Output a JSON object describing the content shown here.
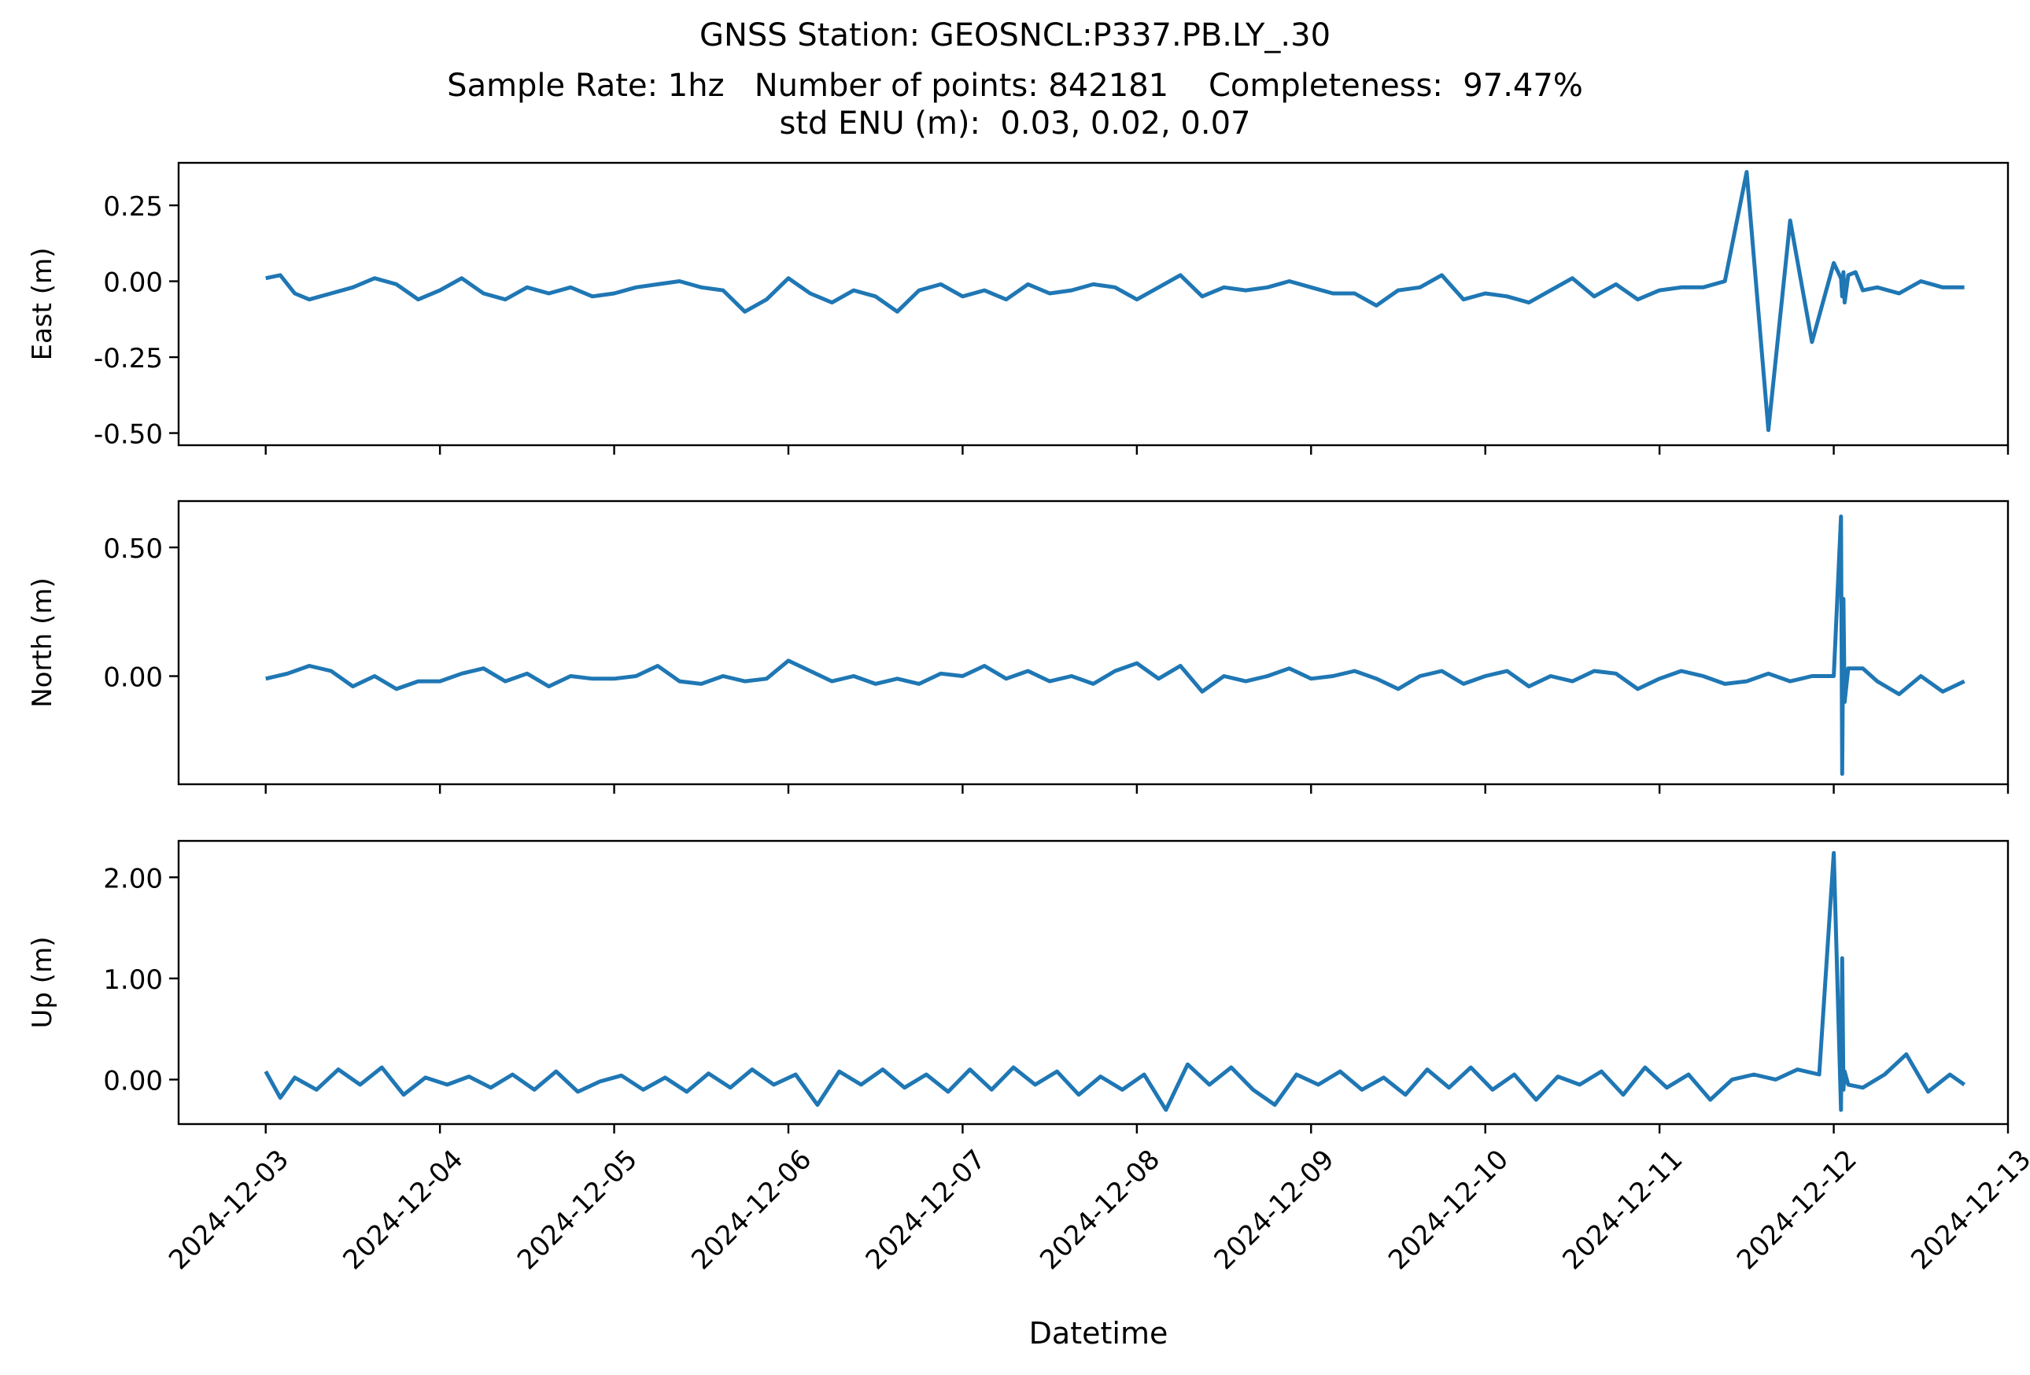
{
  "figure": {
    "title_lines": [
      "GNSS Station: GEOSNCL:P337.PB.LY_.30",
      "Sample Rate: 1hz   Number of points: 842181    Completeness:  97.47%",
      "std ENU (m):  0.03, 0.02, 0.07"
    ],
    "xlabel": "Datetime"
  },
  "chart_data": [
    {
      "type": "line",
      "ylabel": "East (m)",
      "color": "#1f77b4",
      "xlim": [
        "2024-12-02T12:00",
        "2024-12-13T00:00"
      ],
      "ylim": [
        -0.54,
        0.39
      ],
      "yticks": [
        0.25,
        0.0,
        -0.25,
        -0.5
      ],
      "ytick_labels": [
        "0.25",
        "0.00",
        "-0.25",
        "-0.50"
      ],
      "xtick_labels_visible": false,
      "series": [
        {
          "x": [
            "2024-12-03T00:00",
            "2024-12-03T02:00",
            "2024-12-03T04:00",
            "2024-12-03T06:00",
            "2024-12-03T09:00",
            "2024-12-03T12:00",
            "2024-12-03T15:00",
            "2024-12-03T18:00",
            "2024-12-03T21:00",
            "2024-12-04T00:00",
            "2024-12-04T03:00",
            "2024-12-04T06:00",
            "2024-12-04T09:00",
            "2024-12-04T12:00",
            "2024-12-04T15:00",
            "2024-12-04T18:00",
            "2024-12-04T21:00",
            "2024-12-05T00:00",
            "2024-12-05T03:00",
            "2024-12-05T06:00",
            "2024-12-05T09:00",
            "2024-12-05T12:00",
            "2024-12-05T15:00",
            "2024-12-05T18:00",
            "2024-12-05T21:00",
            "2024-12-06T00:00",
            "2024-12-06T03:00",
            "2024-12-06T06:00",
            "2024-12-06T09:00",
            "2024-12-06T12:00",
            "2024-12-06T15:00",
            "2024-12-06T18:00",
            "2024-12-06T21:00",
            "2024-12-07T00:00",
            "2024-12-07T03:00",
            "2024-12-07T06:00",
            "2024-12-07T09:00",
            "2024-12-07T12:00",
            "2024-12-07T15:00",
            "2024-12-07T18:00",
            "2024-12-07T21:00",
            "2024-12-08T00:00",
            "2024-12-08T03:00",
            "2024-12-08T06:00",
            "2024-12-08T09:00",
            "2024-12-08T12:00",
            "2024-12-08T15:00",
            "2024-12-08T18:00",
            "2024-12-08T21:00",
            "2024-12-09T00:00",
            "2024-12-09T03:00",
            "2024-12-09T06:00",
            "2024-12-09T09:00",
            "2024-12-09T12:00",
            "2024-12-09T15:00",
            "2024-12-09T18:00",
            "2024-12-09T21:00",
            "2024-12-10T00:00",
            "2024-12-10T03:00",
            "2024-12-10T06:00",
            "2024-12-10T09:00",
            "2024-12-10T12:00",
            "2024-12-10T15:00",
            "2024-12-10T18:00",
            "2024-12-10T21:00",
            "2024-12-11T00:00",
            "2024-12-11T03:00",
            "2024-12-11T06:00",
            "2024-12-11T09:00",
            "2024-12-11T12:00",
            "2024-12-11T15:00",
            "2024-12-11T18:00",
            "2024-12-11T21:00",
            "2024-12-12T00:00",
            "2024-12-12T01:00",
            "2024-12-12T01:10",
            "2024-12-12T01:20",
            "2024-12-12T01:30",
            "2024-12-12T02:00",
            "2024-12-12T03:00",
            "2024-12-12T04:00",
            "2024-12-12T06:00",
            "2024-12-12T09:00",
            "2024-12-12T12:00",
            "2024-12-12T15:00",
            "2024-12-12T18:00"
          ],
          "y": [
            0.01,
            0.02,
            -0.04,
            -0.06,
            -0.04,
            -0.02,
            0.01,
            -0.01,
            -0.06,
            -0.03,
            0.01,
            -0.04,
            -0.06,
            -0.02,
            -0.04,
            -0.02,
            -0.05,
            -0.04,
            -0.02,
            -0.01,
            0.0,
            -0.02,
            -0.03,
            -0.1,
            -0.06,
            0.01,
            -0.04,
            -0.07,
            -0.03,
            -0.05,
            -0.1,
            -0.03,
            -0.01,
            -0.05,
            -0.03,
            -0.06,
            -0.01,
            -0.04,
            -0.03,
            -0.01,
            -0.02,
            -0.06,
            -0.02,
            0.02,
            -0.05,
            -0.02,
            -0.03,
            -0.02,
            0.0,
            -0.02,
            -0.04,
            -0.04,
            -0.08,
            -0.03,
            -0.02,
            0.02,
            -0.06,
            -0.04,
            -0.05,
            -0.07,
            -0.03,
            0.01,
            -0.05,
            -0.01,
            -0.06,
            -0.03,
            -0.02,
            -0.02,
            0.0,
            0.36,
            -0.49,
            0.2,
            -0.2,
            0.06,
            0.01,
            -0.05,
            0.03,
            -0.07,
            0.02,
            0.03,
            -0.03,
            -0.02,
            -0.04,
            0.0,
            -0.02,
            -0.02
          ]
        }
      ]
    },
    {
      "type": "line",
      "ylabel": "North (m)",
      "color": "#1f77b4",
      "xlim": [
        "2024-12-02T12:00",
        "2024-12-13T00:00"
      ],
      "ylim": [
        -0.42,
        0.68
      ],
      "yticks": [
        0.5,
        0.0
      ],
      "ytick_labels": [
        "0.50",
        "0.00"
      ],
      "xtick_labels_visible": false,
      "series": [
        {
          "x": [
            "2024-12-03T00:00",
            "2024-12-03T03:00",
            "2024-12-03T06:00",
            "2024-12-03T09:00",
            "2024-12-03T12:00",
            "2024-12-03T15:00",
            "2024-12-03T18:00",
            "2024-12-03T21:00",
            "2024-12-04T00:00",
            "2024-12-04T03:00",
            "2024-12-04T06:00",
            "2024-12-04T09:00",
            "2024-12-04T12:00",
            "2024-12-04T15:00",
            "2024-12-04T18:00",
            "2024-12-04T21:00",
            "2024-12-05T00:00",
            "2024-12-05T03:00",
            "2024-12-05T06:00",
            "2024-12-05T09:00",
            "2024-12-05T12:00",
            "2024-12-05T15:00",
            "2024-12-05T18:00",
            "2024-12-05T21:00",
            "2024-12-06T00:00",
            "2024-12-06T03:00",
            "2024-12-06T06:00",
            "2024-12-06T09:00",
            "2024-12-06T12:00",
            "2024-12-06T15:00",
            "2024-12-06T18:00",
            "2024-12-06T21:00",
            "2024-12-07T00:00",
            "2024-12-07T03:00",
            "2024-12-07T06:00",
            "2024-12-07T09:00",
            "2024-12-07T12:00",
            "2024-12-07T15:00",
            "2024-12-07T18:00",
            "2024-12-07T21:00",
            "2024-12-08T00:00",
            "2024-12-08T03:00",
            "2024-12-08T06:00",
            "2024-12-08T09:00",
            "2024-12-08T12:00",
            "2024-12-08T15:00",
            "2024-12-08T18:00",
            "2024-12-08T21:00",
            "2024-12-09T00:00",
            "2024-12-09T03:00",
            "2024-12-09T06:00",
            "2024-12-09T09:00",
            "2024-12-09T12:00",
            "2024-12-09T15:00",
            "2024-12-09T18:00",
            "2024-12-09T21:00",
            "2024-12-10T00:00",
            "2024-12-10T03:00",
            "2024-12-10T06:00",
            "2024-12-10T09:00",
            "2024-12-10T12:00",
            "2024-12-10T15:00",
            "2024-12-10T18:00",
            "2024-12-10T21:00",
            "2024-12-11T00:00",
            "2024-12-11T03:00",
            "2024-12-11T06:00",
            "2024-12-11T09:00",
            "2024-12-11T12:00",
            "2024-12-11T15:00",
            "2024-12-11T18:00",
            "2024-12-11T21:00",
            "2024-12-12T00:00",
            "2024-12-12T01:00",
            "2024-12-12T01:10",
            "2024-12-12T01:20",
            "2024-12-12T01:30",
            "2024-12-12T02:00",
            "2024-12-12T04:00",
            "2024-12-12T06:00",
            "2024-12-12T09:00",
            "2024-12-12T12:00",
            "2024-12-12T15:00",
            "2024-12-12T18:00"
          ],
          "y": [
            -0.01,
            0.01,
            0.04,
            0.02,
            -0.04,
            0.0,
            -0.05,
            -0.02,
            -0.02,
            0.01,
            0.03,
            -0.02,
            0.01,
            -0.04,
            0.0,
            -0.01,
            -0.01,
            0.0,
            0.04,
            -0.02,
            -0.03,
            0.0,
            -0.02,
            -0.01,
            0.06,
            0.02,
            -0.02,
            0.0,
            -0.03,
            -0.01,
            -0.03,
            0.01,
            0.0,
            0.04,
            -0.01,
            0.02,
            -0.02,
            0.0,
            -0.03,
            0.02,
            0.05,
            -0.01,
            0.04,
            -0.06,
            0.0,
            -0.02,
            0.0,
            0.03,
            -0.01,
            0.0,
            0.02,
            -0.01,
            -0.05,
            0.0,
            0.02,
            -0.03,
            0.0,
            0.02,
            -0.04,
            0.0,
            -0.02,
            0.02,
            0.01,
            -0.05,
            -0.01,
            0.02,
            0.0,
            -0.03,
            -0.02,
            0.01,
            -0.02,
            0.0,
            0.0,
            0.62,
            -0.38,
            0.3,
            -0.1,
            0.03,
            0.03,
            -0.02,
            -0.07,
            0.0,
            -0.06,
            -0.02
          ]
        }
      ]
    },
    {
      "type": "line",
      "ylabel": "Up (m)",
      "color": "#1f77b4",
      "xlim": [
        "2024-12-02T12:00",
        "2024-12-13T00:00"
      ],
      "ylim": [
        -0.44,
        2.36
      ],
      "yticks": [
        2.0,
        1.0,
        0.0
      ],
      "ytick_labels": [
        "2.00",
        "1.00",
        "0.00"
      ],
      "xtick_labels_visible": true,
      "xtick_labels": [
        "2024-12-03",
        "2024-12-04",
        "2024-12-05",
        "2024-12-06",
        "2024-12-07",
        "2024-12-08",
        "2024-12-09",
        "2024-12-10",
        "2024-12-11",
        "2024-12-12",
        "2024-12-13"
      ],
      "series": [
        {
          "x": [
            "2024-12-03T00:00",
            "2024-12-03T02:00",
            "2024-12-03T04:00",
            "2024-12-03T07:00",
            "2024-12-03T10:00",
            "2024-12-03T13:00",
            "2024-12-03T16:00",
            "2024-12-03T19:00",
            "2024-12-03T22:00",
            "2024-12-04T01:00",
            "2024-12-04T04:00",
            "2024-12-04T07:00",
            "2024-12-04T10:00",
            "2024-12-04T13:00",
            "2024-12-04T16:00",
            "2024-12-04T19:00",
            "2024-12-04T22:00",
            "2024-12-05T01:00",
            "2024-12-05T04:00",
            "2024-12-05T07:00",
            "2024-12-05T10:00",
            "2024-12-05T13:00",
            "2024-12-05T16:00",
            "2024-12-05T19:00",
            "2024-12-05T22:00",
            "2024-12-06T01:00",
            "2024-12-06T04:00",
            "2024-12-06T07:00",
            "2024-12-06T10:00",
            "2024-12-06T13:00",
            "2024-12-06T16:00",
            "2024-12-06T19:00",
            "2024-12-06T22:00",
            "2024-12-07T01:00",
            "2024-12-07T04:00",
            "2024-12-07T07:00",
            "2024-12-07T10:00",
            "2024-12-07T13:00",
            "2024-12-07T16:00",
            "2024-12-07T19:00",
            "2024-12-07T22:00",
            "2024-12-08T01:00",
            "2024-12-08T04:00",
            "2024-12-08T07:00",
            "2024-12-08T10:00",
            "2024-12-08T13:00",
            "2024-12-08T16:00",
            "2024-12-08T19:00",
            "2024-12-08T22:00",
            "2024-12-09T01:00",
            "2024-12-09T04:00",
            "2024-12-09T07:00",
            "2024-12-09T10:00",
            "2024-12-09T13:00",
            "2024-12-09T16:00",
            "2024-12-09T19:00",
            "2024-12-09T22:00",
            "2024-12-10T01:00",
            "2024-12-10T04:00",
            "2024-12-10T07:00",
            "2024-12-10T10:00",
            "2024-12-10T13:00",
            "2024-12-10T16:00",
            "2024-12-10T19:00",
            "2024-12-10T22:00",
            "2024-12-11T01:00",
            "2024-12-11T04:00",
            "2024-12-11T07:00",
            "2024-12-11T10:00",
            "2024-12-11T13:00",
            "2024-12-11T16:00",
            "2024-12-11T19:00",
            "2024-12-11T22:00",
            "2024-12-12T00:00",
            "2024-12-12T01:00",
            "2024-12-12T01:10",
            "2024-12-12T01:20",
            "2024-12-12T01:30",
            "2024-12-12T02:00",
            "2024-12-12T04:00",
            "2024-12-12T07:00",
            "2024-12-12T10:00",
            "2024-12-12T13:00",
            "2024-12-12T16:00",
            "2024-12-12T18:00"
          ],
          "y": [
            0.08,
            -0.18,
            0.02,
            -0.1,
            0.1,
            -0.05,
            0.12,
            -0.15,
            0.02,
            -0.05,
            0.03,
            -0.08,
            0.05,
            -0.1,
            0.08,
            -0.12,
            -0.02,
            0.04,
            -0.1,
            0.02,
            -0.12,
            0.06,
            -0.08,
            0.1,
            -0.05,
            0.05,
            -0.25,
            0.08,
            -0.05,
            0.1,
            -0.08,
            0.05,
            -0.12,
            0.1,
            -0.1,
            0.12,
            -0.05,
            0.08,
            -0.15,
            0.03,
            -0.1,
            0.05,
            -0.3,
            0.15,
            -0.05,
            0.12,
            -0.1,
            -0.25,
            0.05,
            -0.05,
            0.08,
            -0.1,
            0.02,
            -0.15,
            0.1,
            -0.08,
            0.12,
            -0.1,
            0.05,
            -0.2,
            0.03,
            -0.05,
            0.08,
            -0.15,
            0.12,
            -0.08,
            0.05,
            -0.2,
            0.0,
            0.05,
            0.0,
            0.1,
            0.05,
            2.24,
            -0.3,
            1.2,
            -0.1,
            0.08,
            -0.05,
            -0.08,
            0.05,
            0.25,
            -0.12,
            0.05,
            -0.05
          ]
        }
      ]
    }
  ]
}
